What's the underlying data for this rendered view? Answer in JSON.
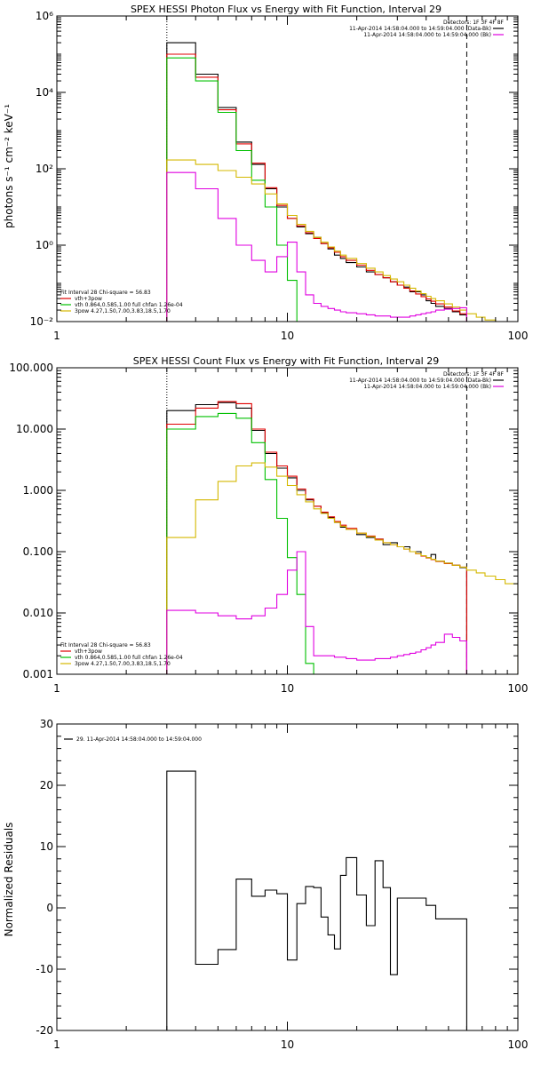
{
  "chart_data": [
    {
      "type": "line",
      "title": "SPEX HESSI Photon Flux vs Energy with Fit Function, Interval 29",
      "ylabel": "photons s⁻¹ cm⁻² keV⁻¹",
      "xlabel": "",
      "xscale": "log",
      "yscale": "log",
      "xlim": [
        1,
        100
      ],
      "ylim": [
        0.01,
        1000000
      ],
      "x_tick_labels": [
        "1",
        "10",
        "100"
      ],
      "y_tick_labels": [
        "10⁻²",
        "10⁰",
        "10²",
        "10⁴",
        "10⁶"
      ],
      "grid": false,
      "vlines": {
        "dotted": 3,
        "dashed": 60
      },
      "legend_top": {
        "header": "Detectors: 1F 3F 4F 8F",
        "entries": [
          {
            "text": "11-Apr-2014 14:58:04.000 to 14:59:04.000 (Data-Bk)",
            "color": "#000000"
          },
          {
            "text": "11-Apr-2014 14:58:04.000 to 14:59:04.000 (Bk)",
            "color": "#e000e0"
          }
        ]
      },
      "legend_bottom": {
        "header": "Fit Interval 28   Chi-square = 56.83",
        "entries": [
          {
            "text": "vth+3pow",
            "color": "#e00000"
          },
          {
            "text": "vth 0.864,0.585,1.00  full chfan 1.26e-04",
            "color": "#00c000"
          },
          {
            "text": "3pow 4.27,1.50,7.00,3.83,18.5,1.70",
            "color": "#d4b800"
          }
        ]
      },
      "series": [
        {
          "name": "11-Apr-2014 14:58:04.000 to 14:59:04.000 (Data-Bk)",
          "color": "#000000",
          "edges": [
            3,
            4,
            5,
            6,
            7,
            8,
            9,
            10,
            11,
            12,
            13,
            14,
            15,
            16,
            17,
            18,
            20,
            22,
            24,
            26,
            28,
            30,
            32,
            34,
            36,
            38,
            40,
            42,
            44,
            48,
            52,
            56,
            60
          ],
          "values": [
            200000,
            30000,
            4000,
            500,
            130,
            30,
            10,
            5,
            3,
            2,
            1.6,
            1.1,
            0.8,
            0.55,
            0.45,
            0.35,
            0.27,
            0.2,
            0.17,
            0.14,
            0.11,
            0.09,
            0.08,
            0.06,
            0.06,
            0.05,
            0.035,
            0.03,
            0.025,
            0.022,
            0.018,
            0.015
          ]
        },
        {
          "name": "vth+3pow",
          "color": "#e00000",
          "edges": [
            3,
            4,
            5,
            6,
            7,
            8,
            9,
            10,
            11,
            12,
            13,
            14,
            15,
            16,
            17,
            18,
            20,
            22,
            24,
            26,
            28,
            30,
            32,
            34,
            36,
            38,
            40,
            42,
            44,
            48,
            52,
            56,
            60
          ],
          "values": [
            100000,
            25000,
            3500,
            450,
            140,
            32,
            11,
            5,
            3.2,
            2.1,
            1.5,
            1.1,
            0.85,
            0.65,
            0.5,
            0.4,
            0.3,
            0.22,
            0.17,
            0.14,
            0.11,
            0.09,
            0.075,
            0.063,
            0.053,
            0.045,
            0.039,
            0.034,
            0.029,
            0.024,
            0.019,
            0.016
          ]
        },
        {
          "name": "vth 0.864,0.585,1.00  full chfan 1.26e-04",
          "color": "#00c000",
          "edges": [
            3,
            4,
            5,
            6,
            7,
            8,
            9,
            10,
            11,
            12,
            13
          ],
          "values": [
            80000,
            20000,
            3000,
            300,
            50,
            10,
            1,
            0.12,
            0.01,
            0.001
          ]
        },
        {
          "name": "3pow 4.27,1.50,7.00,3.83,18.5,1.70",
          "color": "#d4b800",
          "edges": [
            3,
            4,
            5,
            6,
            7,
            8,
            9,
            10,
            11,
            12,
            13,
            14,
            15,
            16,
            17,
            18,
            20,
            22,
            24,
            26,
            28,
            30,
            32,
            34,
            36,
            38,
            40,
            42,
            44,
            48,
            52,
            56,
            60,
            66,
            72,
            80,
            88,
            100
          ],
          "values": [
            170,
            130,
            90,
            60,
            40,
            22,
            12,
            6,
            3.5,
            2.3,
            1.6,
            1.2,
            0.9,
            0.7,
            0.55,
            0.45,
            0.33,
            0.25,
            0.2,
            0.16,
            0.13,
            0.11,
            0.09,
            0.075,
            0.063,
            0.054,
            0.046,
            0.04,
            0.035,
            0.029,
            0.024,
            0.02,
            0.016,
            0.013,
            0.011,
            0.009,
            0.007
          ]
        },
        {
          "name": "11-Apr-2014 14:58:04.000 to 14:59:04.000 (Bk)",
          "color": "#e000e0",
          "edges": [
            3,
            4,
            5,
            6,
            7,
            8,
            9,
            10,
            11,
            12,
            13,
            14,
            15,
            16,
            17,
            18,
            20,
            22,
            24,
            26,
            28,
            30,
            32,
            34,
            36,
            38,
            40,
            42,
            44,
            48,
            52,
            56,
            60
          ],
          "values": [
            80,
            30,
            5,
            1,
            0.4,
            0.2,
            0.5,
            1.2,
            0.2,
            0.05,
            0.03,
            0.025,
            0.022,
            0.02,
            0.018,
            0.017,
            0.016,
            0.015,
            0.014,
            0.014,
            0.013,
            0.013,
            0.013,
            0.014,
            0.015,
            0.016,
            0.017,
            0.018,
            0.02,
            0.021,
            0.022,
            0.023
          ]
        }
      ]
    },
    {
      "type": "line",
      "title": "SPEX HESSI Count Flux vs Energy with Fit Function, Interval 29",
      "ylabel": "",
      "xlabel": "",
      "xscale": "log",
      "yscale": "log",
      "xlim": [
        1,
        100
      ],
      "ylim": [
        0.001,
        100
      ],
      "x_tick_labels": [
        "1",
        "10",
        "100"
      ],
      "y_tick_labels": [
        "0.001",
        "0.010",
        "0.100",
        "1.000",
        "10.000",
        "100.000"
      ],
      "grid": false,
      "vlines": {
        "dotted": 3,
        "dashed": 60
      },
      "legend_top": {
        "header": "Detectors: 1F 3F 4F 8F",
        "entries": [
          {
            "text": "11-Apr-2014 14:58:04.000 to 14:59:04.000 (Data-Bk)",
            "color": "#000000"
          },
          {
            "text": "11-Apr-2014 14:58:04.000 to 14:59:04.000 (Bk)",
            "color": "#e000e0"
          }
        ]
      },
      "legend_bottom": {
        "header": "Fit Interval 28   Chi-square = 56.83",
        "entries": [
          {
            "text": "vth+3pow",
            "color": "#e00000"
          },
          {
            "text": "vth 0.864,0.585,1.00  full chfan 1.26e-04",
            "color": "#00c000"
          },
          {
            "text": "3pow 4.27,1.50,7.00,3.83,18.5,1.70",
            "color": "#d4b800"
          }
        ]
      },
      "series": [
        {
          "name": "11-Apr-2014 14:58:04.000 to 14:59:04.000 (Data-Bk)",
          "color": "#000000",
          "edges": [
            3,
            4,
            5,
            6,
            7,
            8,
            9,
            10,
            11,
            12,
            13,
            14,
            15,
            16,
            17,
            18,
            20,
            22,
            24,
            26,
            28,
            30,
            32,
            34,
            36,
            38,
            40,
            42,
            44,
            48,
            52,
            56,
            60
          ],
          "values": [
            20,
            25,
            27,
            22,
            9.5,
            4,
            2.3,
            1.6,
            1,
            0.7,
            0.55,
            0.43,
            0.36,
            0.3,
            0.25,
            0.23,
            0.19,
            0.17,
            0.16,
            0.13,
            0.14,
            0.12,
            0.12,
            0.1,
            0.1,
            0.085,
            0.08,
            0.09,
            0.07,
            0.065,
            0.06,
            0.055
          ]
        },
        {
          "name": "vth+3pow",
          "color": "#e00000",
          "edges": [
            3,
            4,
            5,
            6,
            7,
            8,
            9,
            10,
            11,
            12,
            13,
            14,
            15,
            16,
            17,
            18,
            20,
            22,
            24,
            26,
            28,
            30,
            32,
            34,
            36,
            38,
            40,
            42,
            44,
            48,
            52,
            56,
            60
          ],
          "values": [
            12,
            22,
            28,
            26,
            10,
            4.2,
            2.5,
            1.7,
            1.05,
            0.72,
            0.55,
            0.44,
            0.37,
            0.31,
            0.27,
            0.24,
            0.2,
            0.18,
            0.16,
            0.14,
            0.13,
            0.12,
            0.11,
            0.1,
            0.092,
            0.085,
            0.079,
            0.074,
            0.069,
            0.064,
            0.06,
            0.056
          ]
        },
        {
          "name": "vth 0.864,0.585,1.00  full chfan 1.26e-04",
          "color": "#00c000",
          "edges": [
            3,
            4,
            5,
            6,
            7,
            8,
            9,
            10,
            11,
            12,
            13,
            14
          ],
          "values": [
            10,
            16,
            18,
            15,
            6,
            1.5,
            0.35,
            0.08,
            0.02,
            0.0015,
            0.0004
          ]
        },
        {
          "name": "3pow 4.27,1.50,7.00,3.83,18.5,1.70",
          "color": "#d4b800",
          "edges": [
            3,
            4,
            5,
            6,
            7,
            8,
            9,
            10,
            11,
            12,
            13,
            14,
            15,
            16,
            17,
            18,
            20,
            22,
            24,
            26,
            28,
            30,
            32,
            34,
            36,
            38,
            40,
            42,
            44,
            48,
            52,
            56,
            60,
            66,
            72,
            80,
            88,
            100
          ],
          "values": [
            0.17,
            0.7,
            1.4,
            2.5,
            2.8,
            2.4,
            1.7,
            1.2,
            0.85,
            0.65,
            0.5,
            0.42,
            0.35,
            0.3,
            0.26,
            0.23,
            0.2,
            0.175,
            0.155,
            0.14,
            0.13,
            0.12,
            0.11,
            0.1,
            0.093,
            0.086,
            0.08,
            0.075,
            0.07,
            0.065,
            0.06,
            0.056,
            0.05,
            0.045,
            0.04,
            0.035,
            0.03
          ]
        },
        {
          "name": "11-Apr-2014 14:58:04.000 to 14:59:04.000 (Bk)",
          "color": "#e000e0",
          "edges": [
            3,
            4,
            5,
            6,
            7,
            8,
            9,
            10,
            11,
            12,
            13,
            14,
            15,
            16,
            17,
            18,
            20,
            22,
            24,
            26,
            28,
            30,
            32,
            34,
            36,
            38,
            40,
            42,
            44,
            48,
            52,
            56,
            60
          ],
          "values": [
            0.011,
            0.01,
            0.009,
            0.008,
            0.009,
            0.012,
            0.02,
            0.05,
            0.1,
            0.006,
            0.002,
            0.002,
            0.002,
            0.0019,
            0.0019,
            0.0018,
            0.0017,
            0.0017,
            0.0018,
            0.0018,
            0.0019,
            0.002,
            0.0021,
            0.0022,
            0.0023,
            0.0025,
            0.0027,
            0.003,
            0.0033,
            0.0045,
            0.004,
            0.0035
          ]
        }
      ]
    },
    {
      "type": "line",
      "title": "",
      "ylabel": "Normalized Residuals",
      "xlabel": "",
      "xscale": "log",
      "yscale": "linear",
      "xlim": [
        1,
        100
      ],
      "ylim": [
        -20,
        30
      ],
      "x_tick_labels": [
        "1",
        "10",
        "100"
      ],
      "y_tick_labels": [
        "-20",
        "-10",
        "0",
        "10",
        "20",
        "30"
      ],
      "y_ticks": [
        -20,
        -10,
        0,
        10,
        20,
        30
      ],
      "grid": false,
      "legend_top": {
        "header": "",
        "entries": [
          {
            "text": "29. 11-Apr-2014 14:58:04.000 to 14:59:04.000",
            "color": "#000000"
          }
        ]
      },
      "series": [
        {
          "name": "29. 11-Apr-2014 14:58:04.000 to 14:59:04.000",
          "color": "#000000",
          "edges": [
            3,
            4,
            5,
            6,
            7,
            8,
            9,
            10,
            11,
            12,
            13,
            14,
            15,
            16,
            17,
            18,
            20,
            22,
            24,
            26,
            28,
            30,
            32,
            34,
            36,
            38,
            40,
            42,
            44,
            48,
            52,
            56,
            60
          ],
          "values": [
            22.3,
            -9.2,
            -6.8,
            4.7,
            1.9,
            2.9,
            2.3,
            -8.5,
            0.7,
            3.5,
            3.3,
            -1.5,
            -4.4,
            -6.7,
            5.3,
            8.2,
            2.1,
            -2.9,
            7.7,
            3.3,
            -10.9,
            1.6,
            1.6,
            1.6,
            1.6,
            1.6,
            0.4,
            0.4,
            -1.8,
            -1.8,
            -1.8,
            -1.8
          ]
        }
      ]
    }
  ]
}
